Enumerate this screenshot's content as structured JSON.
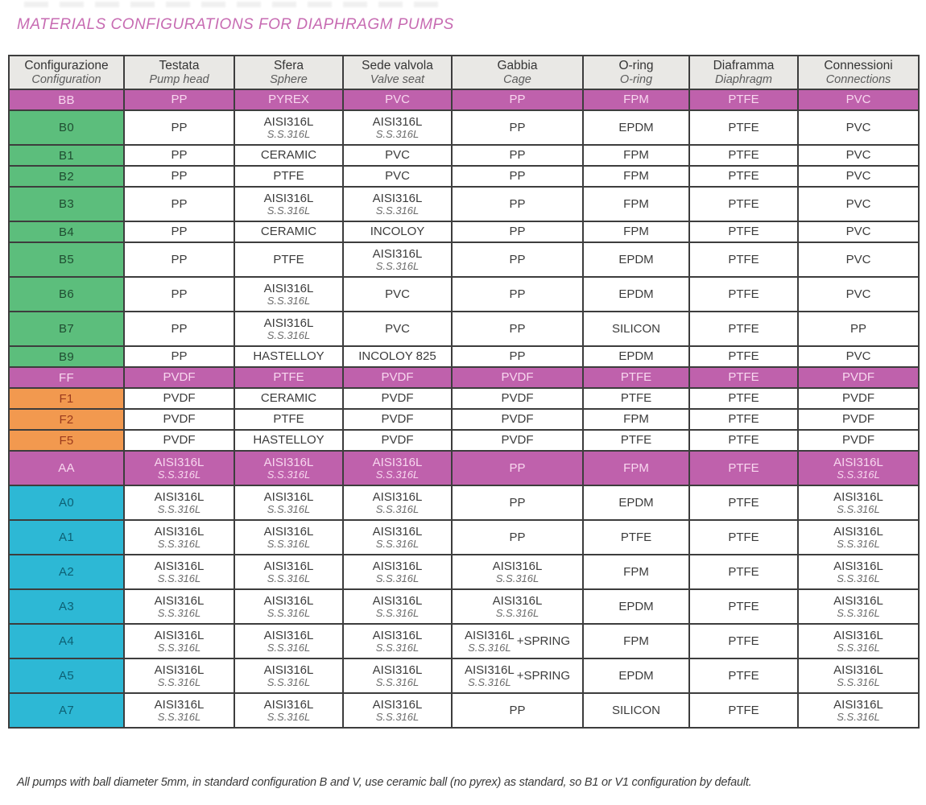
{
  "page": {
    "title": "MATERIALS CONFIGURATIONS FOR DIAPHRAGM PUMPS",
    "footnote": "All pumps with ball diameter 5mm, in standard configuration B and V, use ceramic ball (no pyrex) as standard, so B1 or V1 configuration by default."
  },
  "colors": {
    "title": "#c76bb2",
    "header_bg": "#e9e8e5",
    "border": "#3d3d3d",
    "cell_text": "#3c3c3c",
    "cell_subtext": "#6b6b6b",
    "magenta": "#bf61ac",
    "magenta_text": "#f8d7ef",
    "green": "#5cbe7c",
    "green_text": "#1f4d31",
    "orange": "#f2994f",
    "orange_text": "#9b3a1d",
    "cyan": "#2db8d5",
    "cyan_text": "#0d6074"
  },
  "table": {
    "columns": [
      {
        "it": "Configurazione",
        "en": "Configuration"
      },
      {
        "it": "Testata",
        "en": "Pump head"
      },
      {
        "it": "Sfera",
        "en": "Sphere"
      },
      {
        "it": "Sede valvola",
        "en": "Valve seat"
      },
      {
        "it": "Gabbia",
        "en": "Cage"
      },
      {
        "it": "O-ring",
        "en": "O-ring"
      },
      {
        "it": "Diaframma",
        "en": "Diaphragm"
      },
      {
        "it": "Connessioni",
        "en": "Connections"
      }
    ],
    "rows": [
      {
        "code": "BB",
        "group": "magenta",
        "cells": [
          {
            "main": "PP"
          },
          {
            "main": "PYREX"
          },
          {
            "main": "PVC"
          },
          {
            "main": "PP"
          },
          {
            "main": "FPM"
          },
          {
            "main": "PTFE"
          },
          {
            "main": "PVC"
          }
        ]
      },
      {
        "code": "B0",
        "group": "green",
        "cells": [
          {
            "main": "PP"
          },
          {
            "main": "AISI316L",
            "sub": "S.S.316L"
          },
          {
            "main": "AISI316L",
            "sub": "S.S.316L"
          },
          {
            "main": "PP"
          },
          {
            "main": "EPDM"
          },
          {
            "main": "PTFE"
          },
          {
            "main": "PVC"
          }
        ]
      },
      {
        "code": "B1",
        "group": "green",
        "cells": [
          {
            "main": "PP"
          },
          {
            "main": "CERAMIC"
          },
          {
            "main": "PVC"
          },
          {
            "main": "PP"
          },
          {
            "main": "FPM"
          },
          {
            "main": "PTFE"
          },
          {
            "main": "PVC"
          }
        ]
      },
      {
        "code": "B2",
        "group": "green",
        "cells": [
          {
            "main": "PP"
          },
          {
            "main": "PTFE"
          },
          {
            "main": "PVC"
          },
          {
            "main": "PP"
          },
          {
            "main": "FPM"
          },
          {
            "main": "PTFE"
          },
          {
            "main": "PVC"
          }
        ]
      },
      {
        "code": "B3",
        "group": "green",
        "cells": [
          {
            "main": "PP"
          },
          {
            "main": "AISI316L",
            "sub": "S.S.316L"
          },
          {
            "main": "AISI316L",
            "sub": "S.S.316L"
          },
          {
            "main": "PP"
          },
          {
            "main": "FPM"
          },
          {
            "main": "PTFE"
          },
          {
            "main": "PVC"
          }
        ]
      },
      {
        "code": "B4",
        "group": "green",
        "cells": [
          {
            "main": "PP"
          },
          {
            "main": "CERAMIC"
          },
          {
            "main": "INCOLOY"
          },
          {
            "main": "PP"
          },
          {
            "main": "FPM"
          },
          {
            "main": "PTFE"
          },
          {
            "main": "PVC"
          }
        ]
      },
      {
        "code": "B5",
        "group": "green",
        "cells": [
          {
            "main": "PP"
          },
          {
            "main": "PTFE"
          },
          {
            "main": "AISI316L",
            "sub": "S.S.316L"
          },
          {
            "main": "PP"
          },
          {
            "main": "EPDM"
          },
          {
            "main": "PTFE"
          },
          {
            "main": "PVC"
          }
        ]
      },
      {
        "code": "B6",
        "group": "green",
        "cells": [
          {
            "main": "PP"
          },
          {
            "main": "AISI316L",
            "sub": "S.S.316L"
          },
          {
            "main": "PVC"
          },
          {
            "main": "PP"
          },
          {
            "main": "EPDM"
          },
          {
            "main": "PTFE"
          },
          {
            "main": "PVC"
          }
        ]
      },
      {
        "code": "B7",
        "group": "green",
        "cells": [
          {
            "main": "PP"
          },
          {
            "main": "AISI316L",
            "sub": "S.S.316L"
          },
          {
            "main": "PVC"
          },
          {
            "main": "PP"
          },
          {
            "main": "SILICON"
          },
          {
            "main": "PTFE"
          },
          {
            "main": "PP"
          }
        ]
      },
      {
        "code": "B9",
        "group": "green",
        "cells": [
          {
            "main": "PP"
          },
          {
            "main": "HASTELLOY"
          },
          {
            "main": "INCOLOY 825"
          },
          {
            "main": "PP"
          },
          {
            "main": "EPDM"
          },
          {
            "main": "PTFE"
          },
          {
            "main": "PVC"
          }
        ]
      },
      {
        "code": "FF",
        "group": "magenta",
        "cells": [
          {
            "main": "PVDF"
          },
          {
            "main": "PTFE"
          },
          {
            "main": "PVDF"
          },
          {
            "main": "PVDF"
          },
          {
            "main": "PTFE"
          },
          {
            "main": "PTFE"
          },
          {
            "main": "PVDF"
          }
        ]
      },
      {
        "code": "F1",
        "group": "orange",
        "cells": [
          {
            "main": "PVDF"
          },
          {
            "main": "CERAMIC"
          },
          {
            "main": "PVDF"
          },
          {
            "main": "PVDF"
          },
          {
            "main": "PTFE"
          },
          {
            "main": "PTFE"
          },
          {
            "main": "PVDF"
          }
        ]
      },
      {
        "code": "F2",
        "group": "orange",
        "cells": [
          {
            "main": "PVDF"
          },
          {
            "main": "PTFE"
          },
          {
            "main": "PVDF"
          },
          {
            "main": "PVDF"
          },
          {
            "main": "FPM"
          },
          {
            "main": "PTFE"
          },
          {
            "main": "PVDF"
          }
        ]
      },
      {
        "code": "F5",
        "group": "orange",
        "cells": [
          {
            "main": "PVDF"
          },
          {
            "main": "HASTELLOY"
          },
          {
            "main": "PVDF"
          },
          {
            "main": "PVDF"
          },
          {
            "main": "PTFE"
          },
          {
            "main": "PTFE"
          },
          {
            "main": "PVDF"
          }
        ]
      },
      {
        "code": "AA",
        "group": "magenta",
        "cells": [
          {
            "main": "AISI316L",
            "sub": "S.S.316L"
          },
          {
            "main": "AISI316L",
            "sub": "S.S.316L"
          },
          {
            "main": "AISI316L",
            "sub": "S.S.316L"
          },
          {
            "main": "PP"
          },
          {
            "main": "FPM"
          },
          {
            "main": "PTFE"
          },
          {
            "main": "AISI316L",
            "sub": "S.S.316L"
          }
        ]
      },
      {
        "code": "A0",
        "group": "cyan",
        "cells": [
          {
            "main": "AISI316L",
            "sub": "S.S.316L"
          },
          {
            "main": "AISI316L",
            "sub": "S.S.316L"
          },
          {
            "main": "AISI316L",
            "sub": "S.S.316L"
          },
          {
            "main": "PP"
          },
          {
            "main": "EPDM"
          },
          {
            "main": "PTFE"
          },
          {
            "main": "AISI316L",
            "sub": "S.S.316L"
          }
        ]
      },
      {
        "code": "A1",
        "group": "cyan",
        "cells": [
          {
            "main": "AISI316L",
            "sub": "S.S.316L"
          },
          {
            "main": "AISI316L",
            "sub": "S.S.316L"
          },
          {
            "main": "AISI316L",
            "sub": "S.S.316L"
          },
          {
            "main": "PP"
          },
          {
            "main": "PTFE"
          },
          {
            "main": "PTFE"
          },
          {
            "main": "AISI316L",
            "sub": "S.S.316L"
          }
        ]
      },
      {
        "code": "A2",
        "group": "cyan",
        "cells": [
          {
            "main": "AISI316L",
            "sub": "S.S.316L"
          },
          {
            "main": "AISI316L",
            "sub": "S.S.316L"
          },
          {
            "main": "AISI316L",
            "sub": "S.S.316L"
          },
          {
            "main": "AISI316L",
            "sub": "S.S.316L"
          },
          {
            "main": "FPM"
          },
          {
            "main": "PTFE"
          },
          {
            "main": "AISI316L",
            "sub": "S.S.316L"
          }
        ]
      },
      {
        "code": "A3",
        "group": "cyan",
        "cells": [
          {
            "main": "AISI316L",
            "sub": "S.S.316L"
          },
          {
            "main": "AISI316L",
            "sub": "S.S.316L"
          },
          {
            "main": "AISI316L",
            "sub": "S.S.316L"
          },
          {
            "main": "AISI316L",
            "sub": "S.S.316L"
          },
          {
            "main": "EPDM"
          },
          {
            "main": "PTFE"
          },
          {
            "main": "AISI316L",
            "sub": "S.S.316L"
          }
        ]
      },
      {
        "code": "A4",
        "group": "cyan",
        "cells": [
          {
            "main": "AISI316L",
            "sub": "S.S.316L"
          },
          {
            "main": "AISI316L",
            "sub": "S.S.316L"
          },
          {
            "main": "AISI316L",
            "sub": "S.S.316L"
          },
          {
            "main": "AISI316L",
            "sub": "S.S.316L",
            "suffix": "+SPRING"
          },
          {
            "main": "FPM"
          },
          {
            "main": "PTFE"
          },
          {
            "main": "AISI316L",
            "sub": "S.S.316L"
          }
        ]
      },
      {
        "code": "A5",
        "group": "cyan",
        "cells": [
          {
            "main": "AISI316L",
            "sub": "S.S.316L"
          },
          {
            "main": "AISI316L",
            "sub": "S.S.316L"
          },
          {
            "main": "AISI316L",
            "sub": "S.S.316L"
          },
          {
            "main": "AISI316L",
            "sub": "S.S.316L",
            "suffix": "+SPRING"
          },
          {
            "main": "EPDM"
          },
          {
            "main": "PTFE"
          },
          {
            "main": "AISI316L",
            "sub": "S.S.316L"
          }
        ]
      },
      {
        "code": "A7",
        "group": "cyan",
        "cells": [
          {
            "main": "AISI316L",
            "sub": "S.S.316L"
          },
          {
            "main": "AISI316L",
            "sub": "S.S.316L"
          },
          {
            "main": "AISI316L",
            "sub": "S.S.316L"
          },
          {
            "main": "PP"
          },
          {
            "main": "SILICON"
          },
          {
            "main": "PTFE"
          },
          {
            "main": "AISI316L",
            "sub": "S.S.316L"
          }
        ]
      }
    ]
  }
}
